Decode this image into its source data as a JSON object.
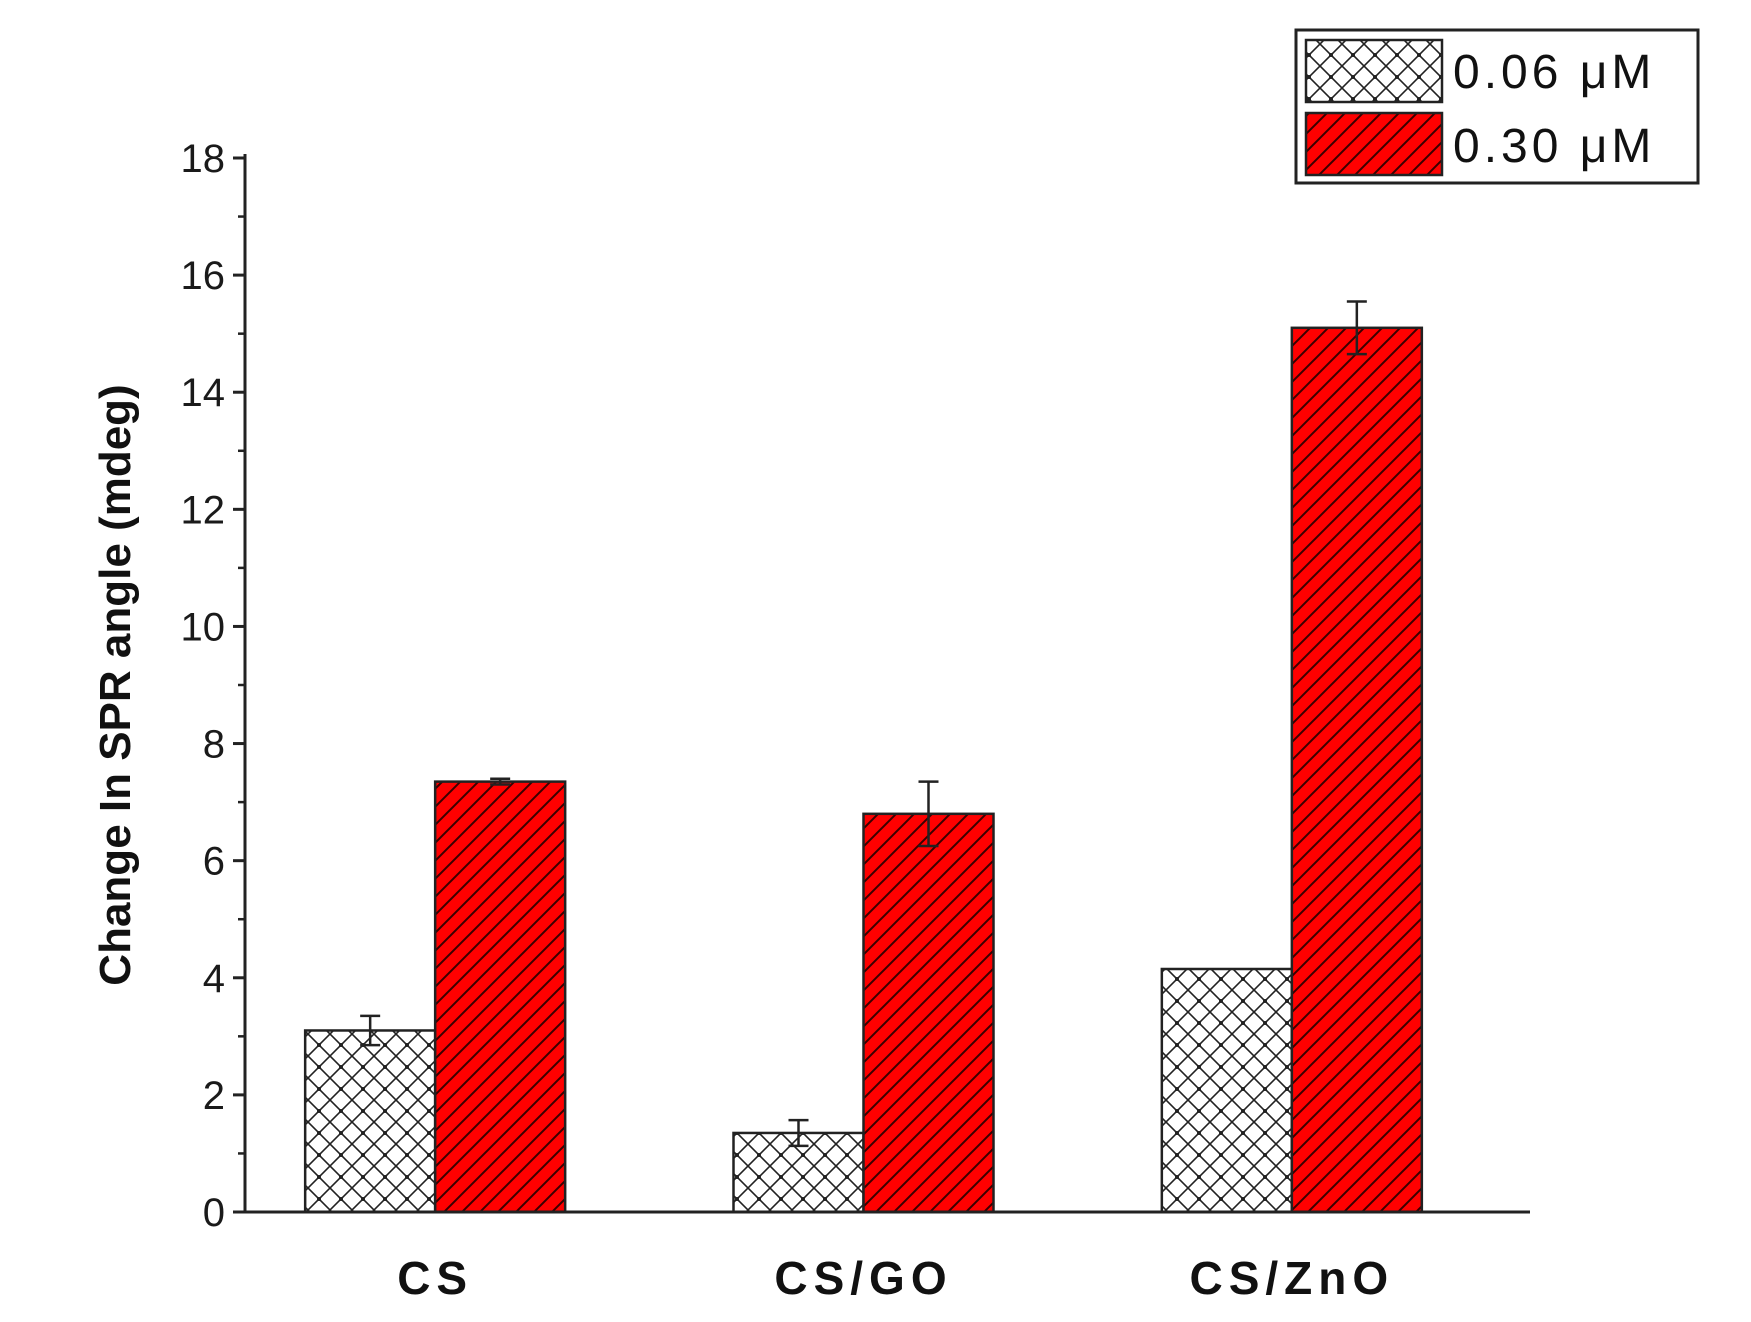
{
  "chart_data": {
    "type": "bar",
    "categories": [
      "CS",
      "CS/GO",
      "CS/ZnO"
    ],
    "series": [
      {
        "name": "0.06 μM",
        "values": [
          3.1,
          1.35,
          4.15
        ],
        "errors": [
          0.25,
          0.22,
          0.0
        ],
        "color": "#ffffff",
        "pattern": "crosshatch"
      },
      {
        "name": "0.30 μM",
        "values": [
          7.35,
          6.8,
          15.1
        ],
        "errors": [
          0.05,
          0.55,
          0.45
        ],
        "color": "#ff0000",
        "pattern": "diagonal"
      }
    ],
    "title": "",
    "xlabel": "",
    "ylabel": "Change In SPR angle (mdeg)",
    "ylim": [
      0,
      18
    ],
    "yticks": [
      0,
      2,
      4,
      6,
      8,
      10,
      12,
      14,
      16,
      18
    ],
    "grid": false,
    "legend_position": "top-right"
  }
}
